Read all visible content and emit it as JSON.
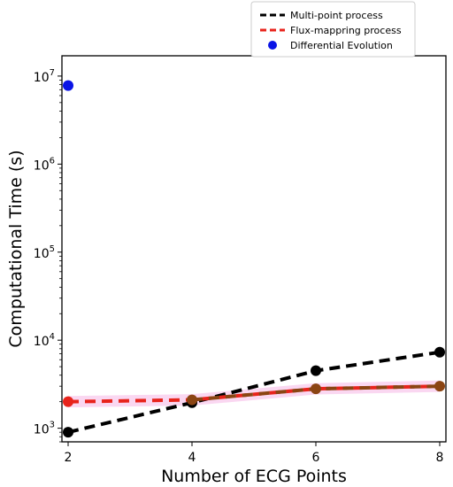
{
  "chart_data": {
    "type": "line",
    "xlabel": "Number of ECG Points",
    "ylabel": "Computational Time (s)",
    "yscale": "log",
    "xlim": [
      1.9,
      8.1
    ],
    "ylim": [
      700,
      17000000
    ],
    "x_ticks": [
      2,
      4,
      6,
      8
    ],
    "y_ticks": [
      {
        "value": 1000,
        "base": "10",
        "exp": "3"
      },
      {
        "value": 10000,
        "base": "10",
        "exp": "4"
      },
      {
        "value": 100000,
        "base": "10",
        "exp": "5"
      },
      {
        "value": 1000000,
        "base": "10",
        "exp": "6"
      },
      {
        "value": 10000000,
        "base": "10",
        "exp": "7"
      }
    ],
    "grid": false,
    "legend_position": "top-right, outside axes",
    "series": [
      {
        "name": "Multi-point process",
        "style": "dashed-line-with-markers",
        "color": "#000000",
        "x": [
          2,
          4,
          6,
          8
        ],
        "y": [
          900,
          1950,
          4500,
          7300
        ]
      },
      {
        "name": "Flux-mappring process",
        "style": "dashed-line-with-markers",
        "color": "#e8241c",
        "marker_color": "#8b4513",
        "band_color": "#f9d0ef",
        "x": [
          2,
          4,
          6,
          8
        ],
        "y": [
          2000,
          2100,
          2800,
          3000
        ]
      },
      {
        "name": "Differential Evolution",
        "style": "scatter",
        "color": "#0a14e6",
        "x": [
          2
        ],
        "y": [
          7800000
        ]
      }
    ]
  }
}
